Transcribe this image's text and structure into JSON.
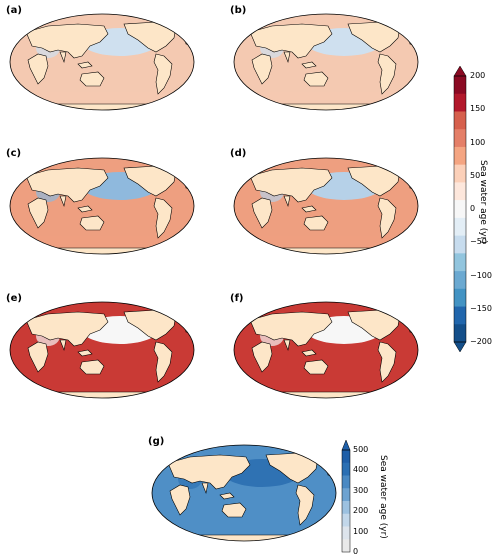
{
  "panels": [
    {
      "label": "(a)",
      "ocean_color": "#f4c9b1",
      "north_color": "#cfe0ef"
    },
    {
      "label": "(b)",
      "ocean_color": "#f4c9b1",
      "north_color": "#cfe0ef"
    },
    {
      "label": "(c)",
      "ocean_color": "#ee9f80",
      "north_color": "#8fb9dd"
    },
    {
      "label": "(d)",
      "ocean_color": "#ee9f80",
      "north_color": "#b6d1e8"
    },
    {
      "label": "(e)",
      "ocean_color": "#c93a35",
      "north_color": "#f7f7f7"
    },
    {
      "label": "(f)",
      "ocean_color": "#c93a35",
      "north_color": "#f7f7f7"
    },
    {
      "label": "(g)",
      "ocean_color": "#4f8fc6",
      "north_color": "#2f72b3"
    }
  ],
  "colorbar_main": {
    "title": "Sea water age (yr)",
    "ticks": [
      "200",
      "150",
      "100",
      "50",
      "0",
      "−50",
      "−100",
      "−150",
      "−200"
    ],
    "colors": [
      "#8b0a23",
      "#b2182b",
      "#d6604d",
      "#e47f68",
      "#f4a582",
      "#fbd0b9",
      "#fde7dc",
      "#f7f7f7",
      "#e3eef6",
      "#c7dcee",
      "#92c5de",
      "#6ba9d1",
      "#4393c3",
      "#2166ac",
      "#144f8a"
    ]
  },
  "colorbar_g": {
    "title": "Sea water age (yr)",
    "ticks": [
      "500",
      "400",
      "300",
      "200",
      "100",
      "0"
    ],
    "colors": [
      "#1f5fa8",
      "#2b6fb3",
      "#4a89c3",
      "#6ea3d1",
      "#9cc1e0",
      "#c2d7ea",
      "#dde4ec",
      "#e9e9e9"
    ]
  },
  "land_color": "#fde6c8"
}
